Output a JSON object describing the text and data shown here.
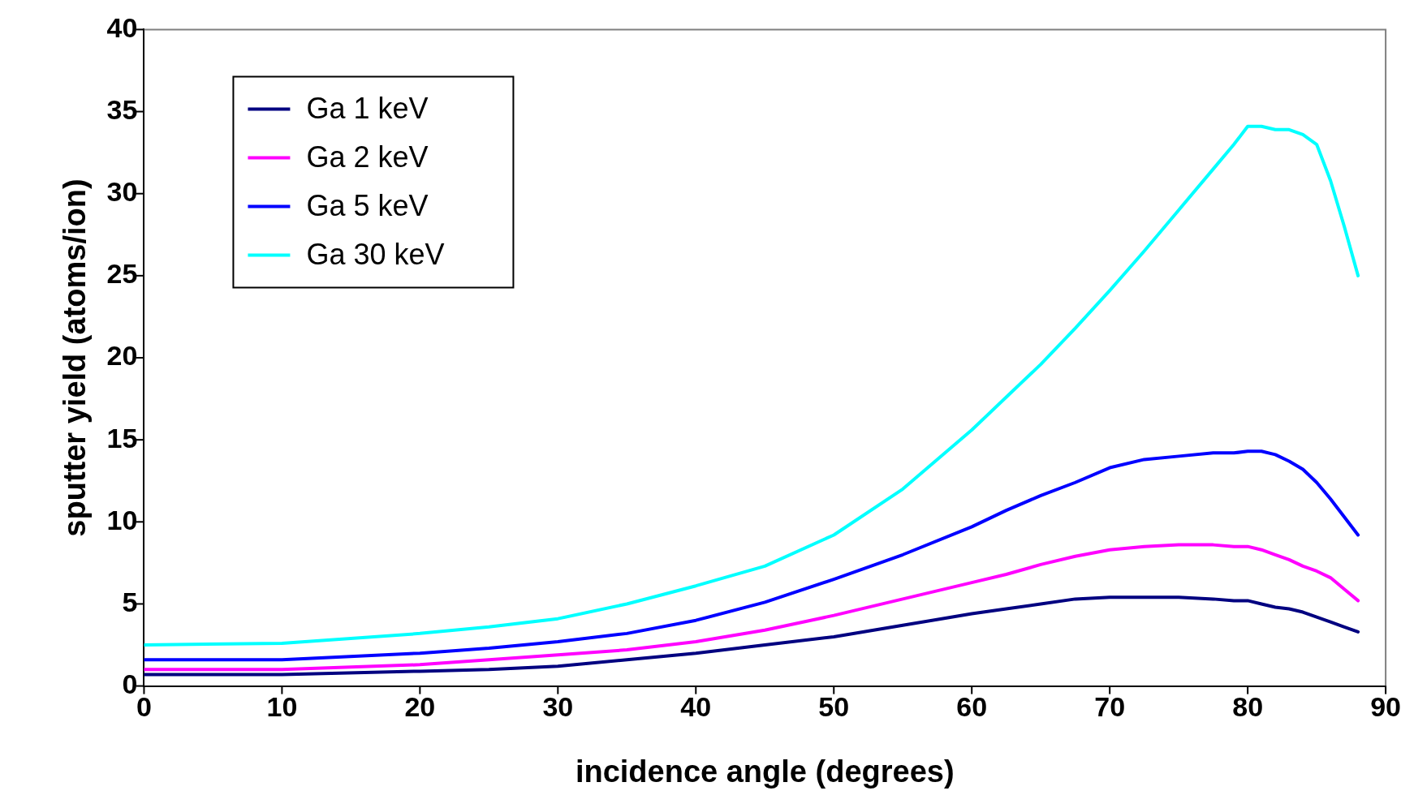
{
  "chart_data": {
    "type": "line",
    "xlabel": "incidence angle (degrees)",
    "ylabel": "sputter yield (atoms/ion)",
    "xlim": [
      0,
      90
    ],
    "xticks": [
      0,
      10,
      20,
      30,
      40,
      50,
      60,
      70,
      80,
      90
    ],
    "ylim": [
      0,
      40
    ],
    "yticks": [
      0,
      5,
      10,
      15,
      20,
      25,
      30,
      35,
      40
    ],
    "grid": false,
    "legend": "top left",
    "marker": "none",
    "line_style": "solid",
    "x": [
      0,
      10,
      20,
      25,
      30,
      35,
      40,
      45,
      50,
      55,
      60,
      62.5,
      65,
      67.5,
      70,
      72.5,
      75,
      77.5,
      79,
      80,
      81,
      82,
      83,
      84,
      85,
      86,
      87,
      88
    ],
    "series": [
      {
        "name": "Ga 1 keV",
        "color": "#000080",
        "values": [
          0.7,
          0.7,
          0.9,
          1.0,
          1.2,
          1.6,
          2.0,
          2.5,
          3.0,
          3.7,
          4.4,
          4.7,
          5.0,
          5.3,
          5.4,
          5.4,
          5.4,
          5.3,
          5.2,
          5.2,
          5.0,
          4.8,
          4.7,
          4.5,
          4.2,
          3.9,
          3.6,
          3.3
        ]
      },
      {
        "name": "Ga 2 keV",
        "color": "#ff00ff",
        "values": [
          1.0,
          1.0,
          1.3,
          1.6,
          1.9,
          2.2,
          2.7,
          3.4,
          4.3,
          5.3,
          6.3,
          6.8,
          7.4,
          7.9,
          8.3,
          8.5,
          8.6,
          8.6,
          8.5,
          8.5,
          8.3,
          8.0,
          7.7,
          7.3,
          7.0,
          6.6,
          5.9,
          5.2
        ]
      },
      {
        "name": "Ga 5 keV",
        "color": "#0000ff",
        "values": [
          1.6,
          1.6,
          2.0,
          2.3,
          2.7,
          3.2,
          4.0,
          5.1,
          6.5,
          8.0,
          9.7,
          10.7,
          11.6,
          12.4,
          13.3,
          13.8,
          14.0,
          14.2,
          14.2,
          14.3,
          14.3,
          14.1,
          13.7,
          13.2,
          12.4,
          11.4,
          10.3,
          9.2
        ]
      },
      {
        "name": "Ga 30 keV",
        "color": "#00ffff",
        "values": [
          2.5,
          2.6,
          3.2,
          3.6,
          4.1,
          5.0,
          6.1,
          7.3,
          9.2,
          12.0,
          15.6,
          17.6,
          19.6,
          21.8,
          24.1,
          26.5,
          29.0,
          31.5,
          33.0,
          34.1,
          34.1,
          33.9,
          33.9,
          33.6,
          33.0,
          30.8,
          28.0,
          25.0
        ]
      }
    ]
  }
}
